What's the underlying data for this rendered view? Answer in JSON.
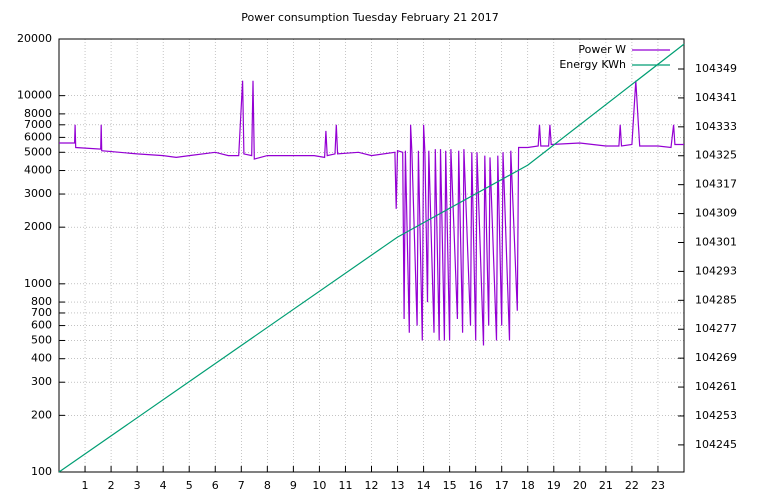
{
  "chart_data": {
    "type": "line",
    "title": "Power consumption Tuesday February 21 2017",
    "log_y": true,
    "grid": true,
    "legend": "top-right",
    "xlim": [
      0,
      24
    ],
    "xticks": [
      1,
      2,
      3,
      4,
      5,
      6,
      7,
      8,
      9,
      10,
      11,
      12,
      13,
      14,
      15,
      16,
      17,
      18,
      19,
      20,
      21,
      22,
      23
    ],
    "ylim": [
      100,
      20000
    ],
    "yticks": [
      100,
      200,
      300,
      400,
      500,
      600,
      700,
      800,
      1000,
      2000,
      3000,
      4000,
      5000,
      6000,
      7000,
      8000,
      10000,
      20000
    ],
    "y2lim": [
      104237.5,
      104357.3
    ],
    "y2ticks": [
      104245,
      104253,
      104261,
      104269,
      104277,
      104285,
      104293,
      104301,
      104309,
      104317,
      104325,
      104333,
      104341,
      104349
    ],
    "series": [
      {
        "name": "Power W",
        "color": "#9400d3",
        "x": [
          0,
          0.6,
          0.62,
          0.64,
          1.6,
          1.62,
          1.64,
          3,
          4,
          4.5,
          5,
          6,
          6.5,
          6.9,
          7.05,
          7.1,
          7.4,
          7.45,
          7.5,
          8,
          9,
          9.8,
          10.2,
          10.25,
          10.3,
          10.6,
          10.65,
          10.7,
          11.5,
          12,
          12.9,
          12.95,
          13,
          13.2,
          13.25,
          13.3,
          13.45,
          13.5,
          13.55,
          13.75,
          13.8,
          13.95,
          14,
          14.05,
          14.15,
          14.2,
          14.4,
          14.45,
          14.6,
          14.65,
          14.8,
          14.85,
          15,
          15.05,
          15.3,
          15.35,
          15.5,
          15.55,
          15.8,
          15.85,
          16,
          16.05,
          16.3,
          16.35,
          16.5,
          16.55,
          16.8,
          16.85,
          17,
          17.05,
          17.3,
          17.35,
          17.6,
          17.65,
          18,
          18.4,
          18.45,
          18.5,
          18.8,
          18.85,
          18.9,
          20,
          21,
          21.5,
          21.55,
          21.6,
          22,
          22.15,
          22.25,
          22.3,
          23,
          23.5,
          23.6,
          23.65,
          24
        ],
        "values": [
          5600,
          5600,
          7000,
          5300,
          5200,
          7000,
          5100,
          4900,
          4800,
          4700,
          4800,
          5000,
          4800,
          4800,
          12000,
          4900,
          4800,
          12000,
          4600,
          4800,
          4800,
          4800,
          4700,
          6500,
          4800,
          4900,
          7000,
          4900,
          5000,
          4800,
          5000,
          2500,
          5100,
          5000,
          650,
          5100,
          550,
          7000,
          5000,
          600,
          5100,
          500,
          7000,
          5000,
          800,
          5100,
          550,
          5200,
          500,
          5200,
          500,
          5100,
          500,
          5200,
          650,
          5100,
          550,
          5200,
          600,
          5000,
          500,
          5000,
          470,
          4800,
          600,
          4700,
          500,
          4800,
          600,
          5000,
          500,
          5100,
          720,
          5300,
          5300,
          5400,
          7000,
          5400,
          5400,
          7000,
          5500,
          5600,
          5400,
          5400,
          7000,
          5400,
          5500,
          12000,
          7000,
          5400,
          5400,
          5300,
          7000,
          5500,
          5500
        ]
      },
      {
        "name": "Energy KWh",
        "color": "#009e73",
        "axis": "y2",
        "x": [
          0,
          13,
          18,
          24
        ],
        "values": [
          104237.5,
          104302.5,
          104322.4,
          104355.9
        ]
      }
    ]
  }
}
